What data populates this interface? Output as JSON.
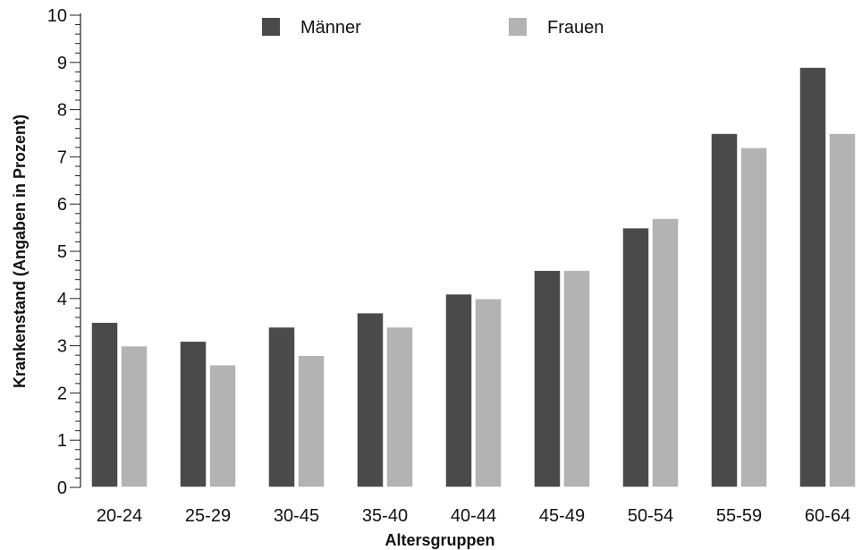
{
  "chart_data": {
    "type": "bar",
    "title": "",
    "xlabel": "Altersgruppen",
    "ylabel": "Krankenstand (Angaben in Prozent)",
    "ylim": [
      0,
      10
    ],
    "yticks": [
      "0",
      "1",
      "2",
      "3",
      "4",
      "5",
      "6",
      "7",
      "8",
      "9",
      "10"
    ],
    "categories": [
      "20-24",
      "25-29",
      "30-45",
      "35-40",
      "40-44",
      "45-49",
      "50-54",
      "55-59",
      "60-64"
    ],
    "series": [
      {
        "name": "Männer",
        "color": "#4a4a4a",
        "values": [
          3.5,
          3.1,
          3.4,
          3.7,
          4.1,
          4.6,
          5.5,
          7.5,
          8.9
        ]
      },
      {
        "name": "Frauen",
        "color": "#b3b3b3",
        "values": [
          3.0,
          2.6,
          2.8,
          3.4,
          4.0,
          4.6,
          5.7,
          7.2,
          7.5
        ]
      }
    ],
    "legend_position": "top",
    "grid": false
  }
}
